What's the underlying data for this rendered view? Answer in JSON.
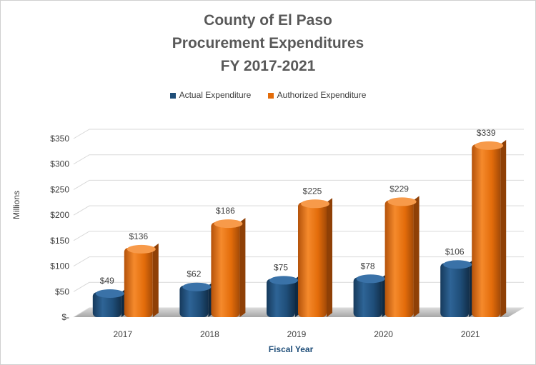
{
  "chart_data": {
    "type": "bar",
    "title": [
      "County of El Paso",
      "Procurement  Expenditures",
      "FY 2017-2021"
    ],
    "categories": [
      "2017",
      "2018",
      "2019",
      "2020",
      "2021"
    ],
    "series": [
      {
        "name": "Actual Expenditure",
        "color": "#1f4e79",
        "values": [
          49,
          62,
          75,
          78,
          106
        ],
        "labels": [
          "$49",
          "$62",
          "$75",
          "$78",
          "$106"
        ]
      },
      {
        "name": "Authorized Expenditure",
        "color": "#e36c0a",
        "values": [
          136,
          186,
          225,
          229,
          339
        ],
        "labels": [
          "$136",
          "$186",
          "$225",
          "$229",
          "$339"
        ]
      }
    ],
    "xlabel": "Fiscal Year",
    "ylabel": "Millions",
    "ylim": [
      0,
      350
    ],
    "yticks": [
      {
        "value": 0,
        "label": "$-"
      },
      {
        "value": 50,
        "label": "$50"
      },
      {
        "value": 100,
        "label": "$100"
      },
      {
        "value": 150,
        "label": "$150"
      },
      {
        "value": 200,
        "label": "$200"
      },
      {
        "value": 250,
        "label": "$250"
      },
      {
        "value": 300,
        "label": "$300"
      },
      {
        "value": 350,
        "label": "$350"
      }
    ],
    "grid": true,
    "legend_position": "top",
    "style": "3d-cylinder-bars"
  }
}
